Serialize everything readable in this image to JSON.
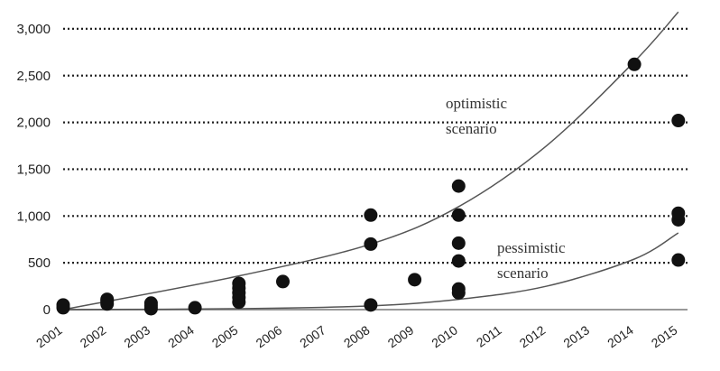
{
  "chart_data": {
    "type": "scatter",
    "title": "",
    "xlabel": "",
    "ylabel": "",
    "x_categories": [
      "2001",
      "2002",
      "2003",
      "2004",
      "2005",
      "2006",
      "2007",
      "2008",
      "2009",
      "2010",
      "2011",
      "2012",
      "2013",
      "2014",
      "2015"
    ],
    "y_ticks": [
      "0",
      "500",
      "1,000",
      "1,500",
      "2,000",
      "2,500",
      "3,000"
    ],
    "ylim": [
      0,
      3000
    ],
    "grid": "horizontal dotted",
    "points": [
      {
        "x": "2001",
        "y": 20
      },
      {
        "x": "2001",
        "y": 50
      },
      {
        "x": "2002",
        "y": 60
      },
      {
        "x": "2002",
        "y": 90
      },
      {
        "x": "2002",
        "y": 110
      },
      {
        "x": "2003",
        "y": 10
      },
      {
        "x": "2003",
        "y": 40
      },
      {
        "x": "2003",
        "y": 70
      },
      {
        "x": "2004",
        "y": 20
      },
      {
        "x": "2005",
        "y": 80
      },
      {
        "x": "2005",
        "y": 130
      },
      {
        "x": "2005",
        "y": 180
      },
      {
        "x": "2005",
        "y": 230
      },
      {
        "x": "2005",
        "y": 280
      },
      {
        "x": "2006",
        "y": 300
      },
      {
        "x": "2008",
        "y": 50
      },
      {
        "x": "2008",
        "y": 700
      },
      {
        "x": "2008",
        "y": 1010
      },
      {
        "x": "2009",
        "y": 320
      },
      {
        "x": "2010",
        "y": 180
      },
      {
        "x": "2010",
        "y": 220
      },
      {
        "x": "2010",
        "y": 520
      },
      {
        "x": "2010",
        "y": 710
      },
      {
        "x": "2010",
        "y": 1010
      },
      {
        "x": "2010",
        "y": 1320
      },
      {
        "x": "2014",
        "y": 2620
      },
      {
        "x": "2015",
        "y": 530
      },
      {
        "x": "2015",
        "y": 960
      },
      {
        "x": "2015",
        "y": 1030
      },
      {
        "x": "2015",
        "y": 2020
      }
    ],
    "curves": [
      {
        "label": "optimistic scenario",
        "x": [
          "2001",
          "2005",
          "2008",
          "2010",
          "2012",
          "2014",
          "2015"
        ],
        "y": [
          0,
          360,
          700,
          1100,
          1750,
          2650,
          3180
        ]
      },
      {
        "label": "pessimistic scenario",
        "x": [
          "2001",
          "2005",
          "2008",
          "2010",
          "2012",
          "2014",
          "2015"
        ],
        "y": [
          0,
          10,
          40,
          110,
          250,
          540,
          820
        ]
      }
    ],
    "annotations": [
      {
        "lines": [
          "optimistic",
          "scenario"
        ],
        "near": "optimistic curve, around 2009-2011"
      },
      {
        "lines": [
          "pessimistic",
          "scenario"
        ],
        "near": "pessimistic curve, around 2011-2013"
      }
    ]
  }
}
